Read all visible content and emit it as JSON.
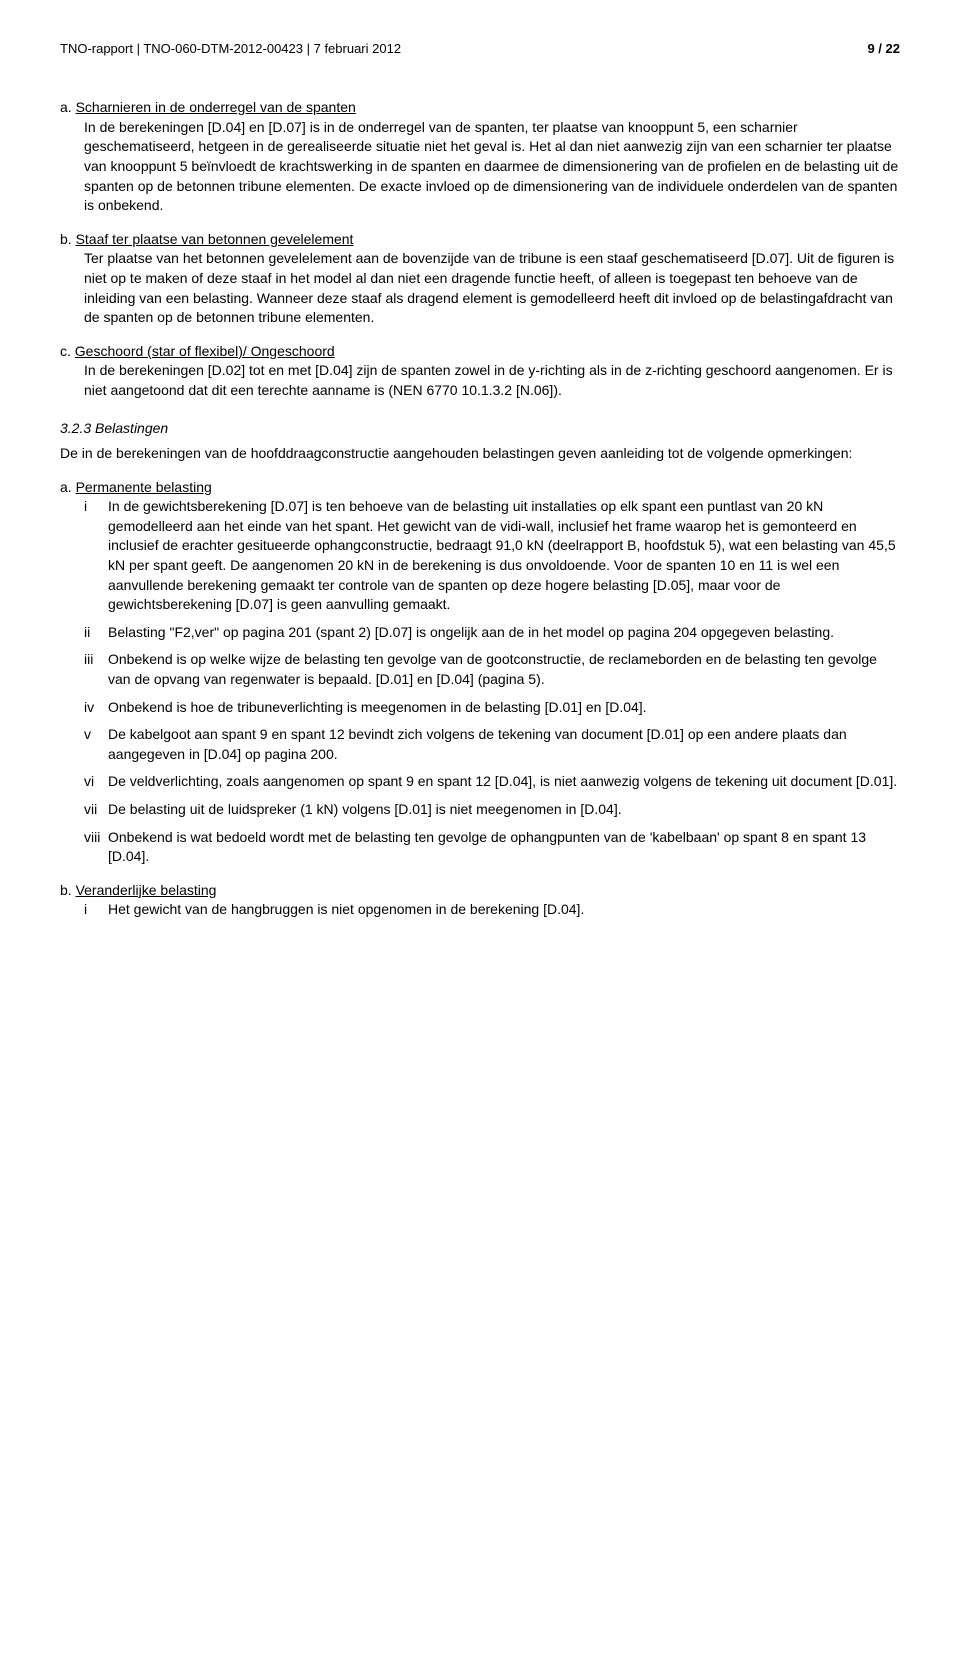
{
  "header": {
    "left": "TNO-rapport | TNO-060-DTM-2012-00423 | 7 februari 2012",
    "right": "9 / 22"
  },
  "items": {
    "a": {
      "label": "a.",
      "title": "Scharnieren in de onderregel van de spanten",
      "content": "In de berekeningen [D.04] en [D.07] is in de onderregel van de spanten, ter plaatse van knooppunt 5, een scharnier geschematiseerd, hetgeen in de gerealiseerde situatie niet het geval is. Het al dan niet aanwezig zijn van een scharnier ter plaatse van knooppunt 5 beïnvloedt de krachtswerking in de spanten en daarmee de dimensionering van de profielen en de belasting uit de spanten op de betonnen tribune elementen. De exacte invloed op de dimensionering van de individuele onderdelen van de spanten is onbekend."
    },
    "b": {
      "label": "b.",
      "title": "Staaf ter plaatse van betonnen gevelelement",
      "content": "Ter plaatse van het betonnen gevelelement aan de bovenzijde van de tribune is een staaf geschematiseerd [D.07]. Uit de figuren is niet op te maken of deze staaf in het model al dan niet een dragende functie heeft, of alleen is toegepast ten behoeve van de inleiding van een belasting. Wanneer deze staaf als dragend element is gemodelleerd heeft dit invloed op de belastingafdracht van de spanten op de betonnen tribune elementen."
    },
    "c": {
      "label": "c.",
      "title": "Geschoord (star of flexibel)/ Ongeschoord",
      "content": "In de berekeningen [D.02] tot en met [D.04] zijn de spanten zowel in de y-richting als in de z-richting geschoord aangenomen. Er is niet aangetoond dat dit een terechte aanname is (NEN 6770 10.1.3.2 [N.06])."
    }
  },
  "section323": {
    "heading": "3.2.3    Belastingen",
    "intro": "De in de berekeningen van de hoofddraagconstructie aangehouden belastingen geven aanleiding tot de volgende opmerkingen:"
  },
  "permanent": {
    "label": "a.",
    "title": "Permanente belasting",
    "sub": {
      "i": {
        "marker": "i",
        "text": "In de gewichtsberekening [D.07] is ten behoeve van de belasting uit installaties op elk spant een puntlast van 20 kN gemodelleerd aan het einde van het spant. Het gewicht van de vidi-wall, inclusief het frame waarop het is gemonteerd en inclusief de erachter gesitueerde ophangconstructie, bedraagt 91,0 kN (deelrapport B, hoofdstuk 5), wat een belasting van 45,5 kN per spant geeft. De aangenomen 20 kN in de berekening is dus onvoldoende. Voor de spanten 10 en 11 is wel een aanvullende berekening gemaakt ter controle van de spanten op deze hogere belasting [D.05], maar voor de gewichtsberekening [D.07] is geen aanvulling gemaakt."
      },
      "ii": {
        "marker": "ii",
        "text": "Belasting \"F2,ver\" op pagina 201 (spant 2) [D.07] is ongelijk aan de in het model op pagina 204 opgegeven belasting."
      },
      "iii": {
        "marker": "iii",
        "text": "Onbekend is op welke wijze de belasting ten gevolge van de gootconstructie, de reclameborden en de belasting ten gevolge van de opvang van regenwater is bepaald. [D.01] en [D.04] (pagina 5)."
      },
      "iv": {
        "marker": "iv",
        "text": "Onbekend is hoe de tribuneverlichting is meegenomen in de belasting [D.01] en [D.04]."
      },
      "v": {
        "marker": "v",
        "text": "De kabelgoot aan spant 9 en spant 12 bevindt zich volgens de tekening van document [D.01] op een andere plaats dan aangegeven in [D.04] op pagina 200."
      },
      "vi": {
        "marker": "vi",
        "text": "De veldverlichting, zoals aangenomen op spant 9 en spant 12 [D.04], is niet aanwezig volgens de tekening uit document [D.01]."
      },
      "vii": {
        "marker": "vii",
        "text": "De belasting uit de luidspreker (1 kN) volgens [D.01] is niet meegenomen in [D.04]."
      },
      "viii": {
        "marker": "viii",
        "text": "Onbekend is wat bedoeld wordt met de belasting ten gevolge de ophangpunten van de 'kabelbaan' op spant 8 en spant 13 [D.04]."
      }
    }
  },
  "variable": {
    "label": "b.",
    "title": "Veranderlijke belasting",
    "sub": {
      "i": {
        "marker": "i",
        "text": "Het gewicht van de hangbruggen is niet opgenomen in de berekening [D.04]."
      }
    }
  }
}
